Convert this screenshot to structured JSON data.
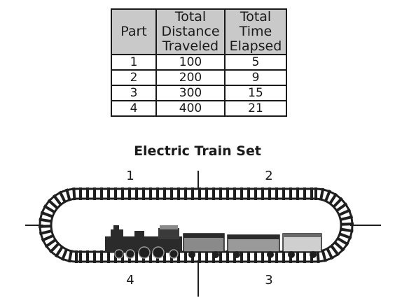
{
  "table": {
    "headers": [
      [
        "Part"
      ],
      [
        "Total",
        "Distance",
        "Traveled"
      ],
      [
        "Total",
        "Time",
        "Elapsed"
      ]
    ],
    "rows": [
      [
        "1",
        "100",
        "5"
      ],
      [
        "2",
        "200",
        "9"
      ],
      [
        "3",
        "300",
        "15"
      ],
      [
        "4",
        "400",
        "21"
      ]
    ]
  },
  "diagram": {
    "title": "Electric Train Set",
    "part_labels": [
      "1",
      "2",
      "3",
      "4"
    ],
    "colors": {
      "track": "#1f1f1f",
      "header_fill": "#c9c9c9",
      "car_fill": "#8a8a8a",
      "car_light": "#cfcfcf"
    }
  }
}
